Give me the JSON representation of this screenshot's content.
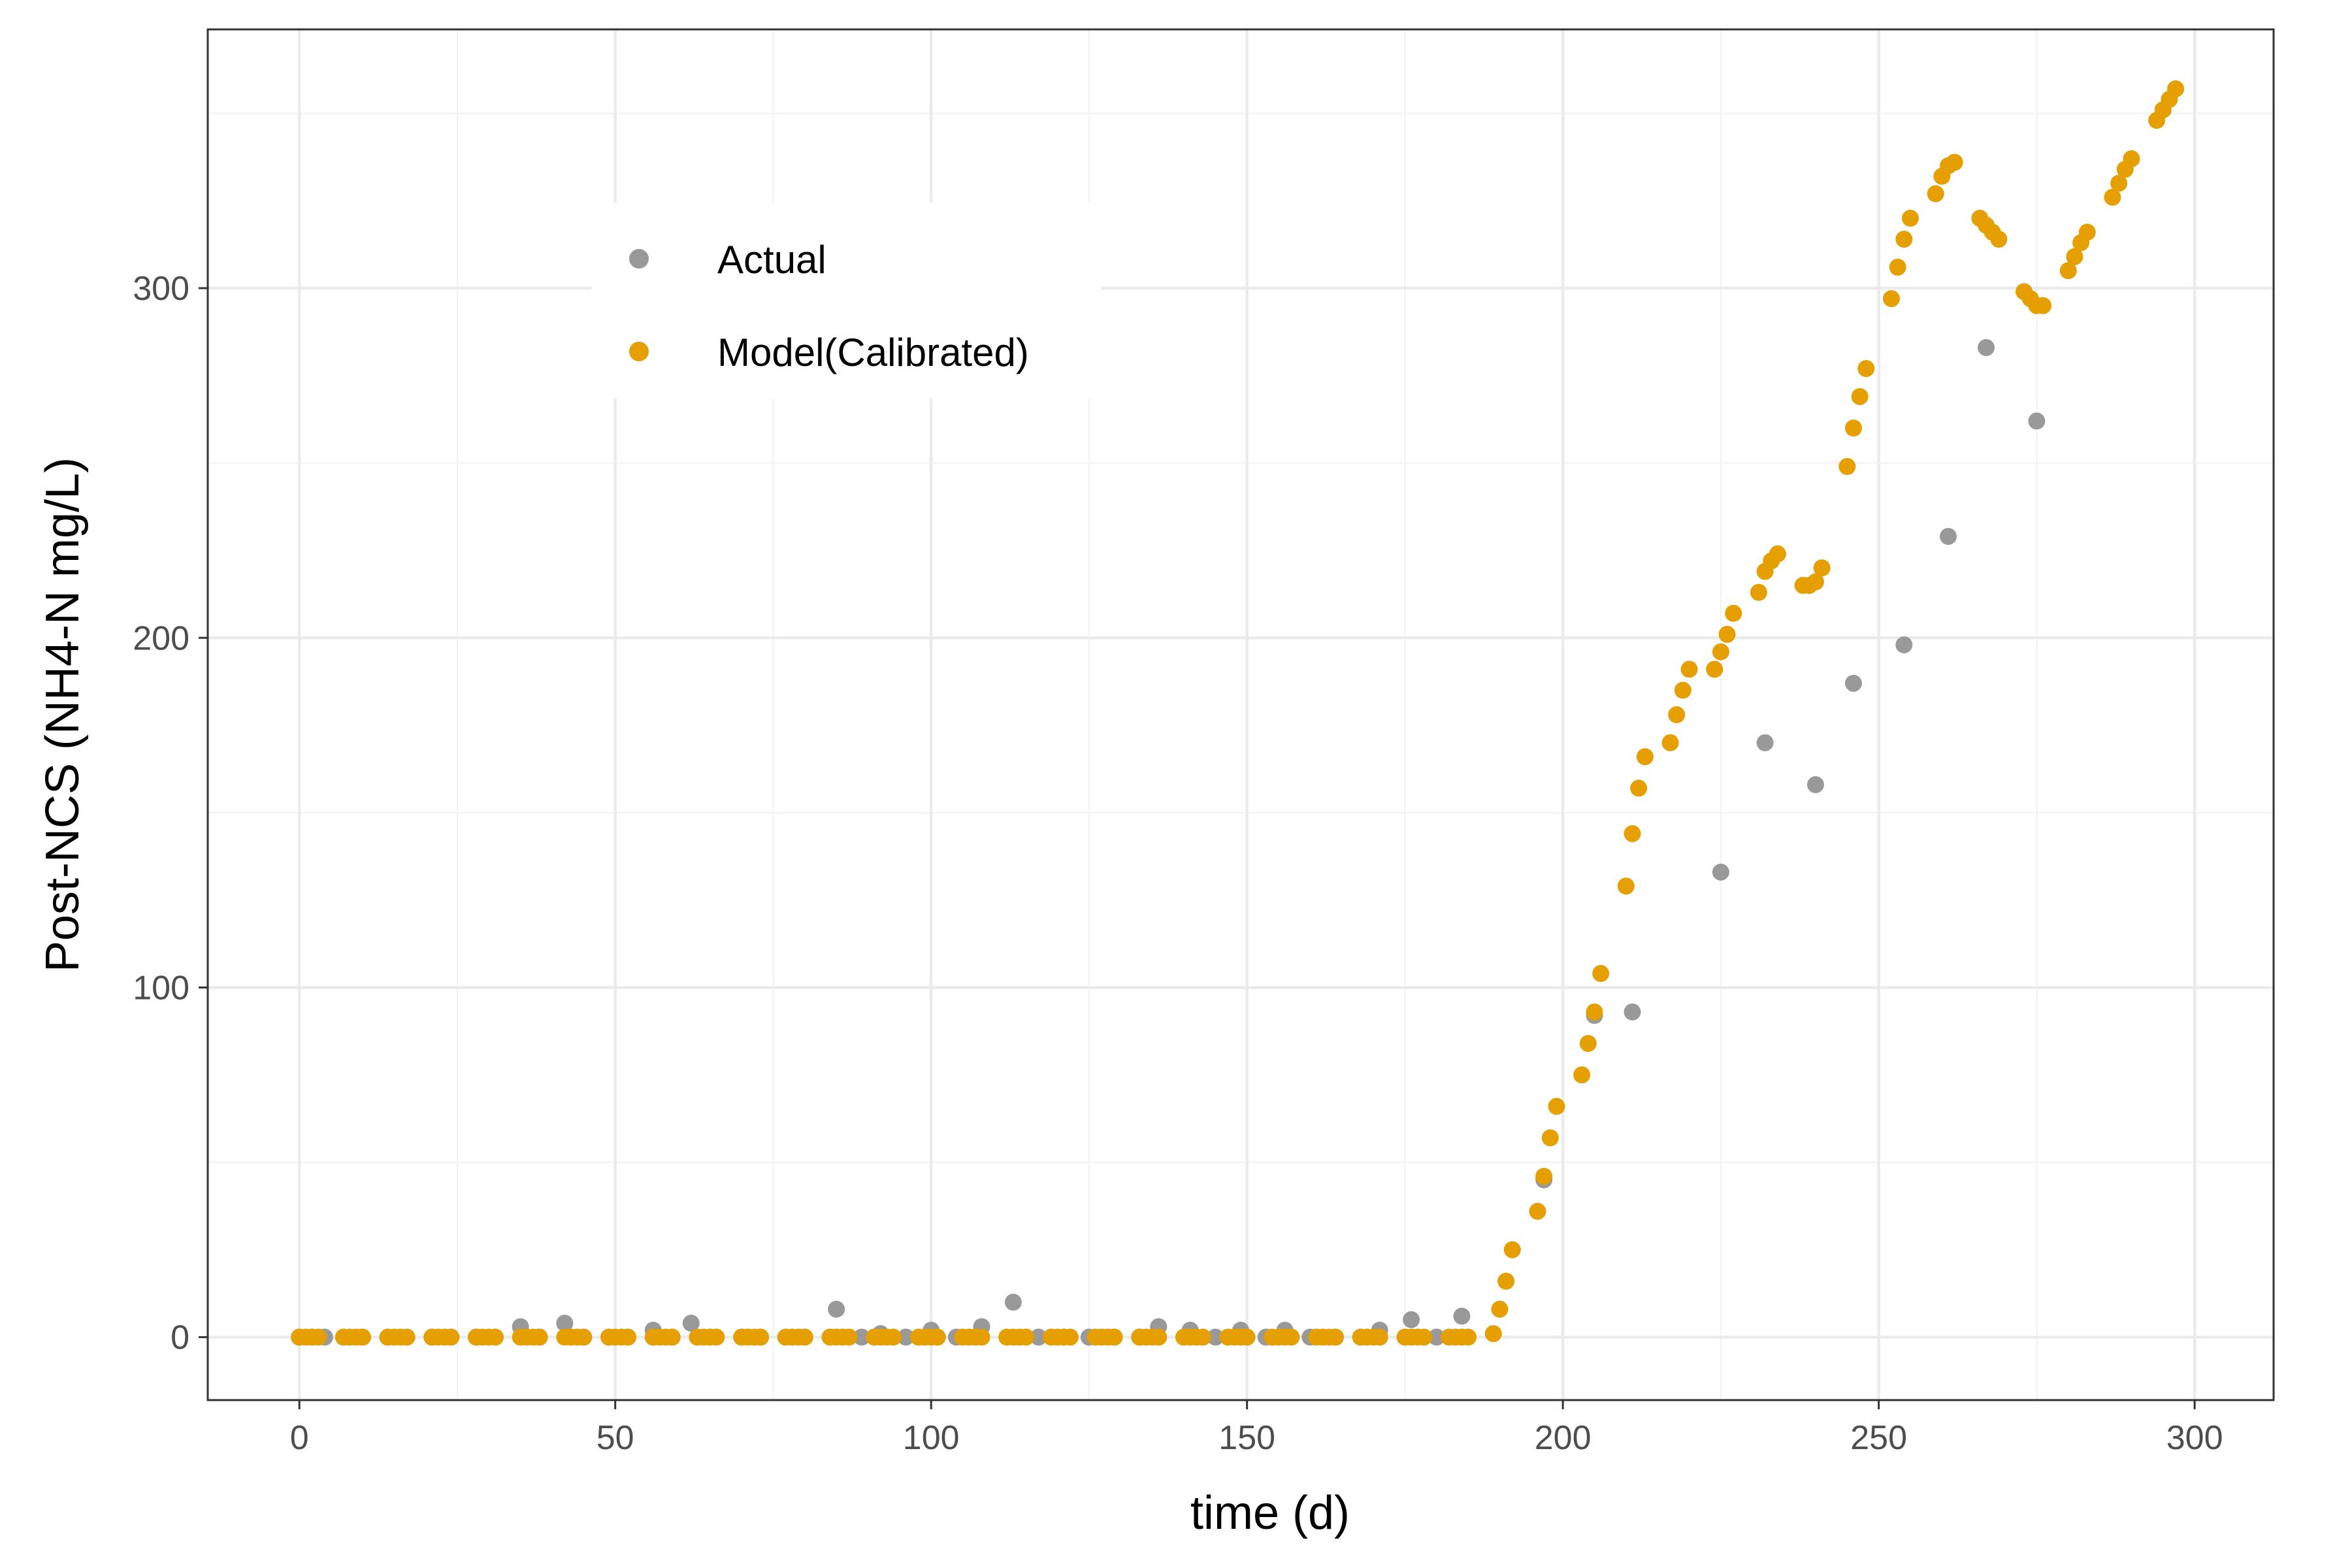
{
  "chart_data": {
    "type": "scatter",
    "title": "",
    "xlabel": "time (d)",
    "ylabel": "Post-NCS (NH4-N mg/L)",
    "xlim": [
      -14.5,
      312.5
    ],
    "ylim": [
      -18,
      374
    ],
    "x_ticks": [
      0,
      50,
      100,
      150,
      200,
      250,
      300
    ],
    "y_ticks": [
      0,
      100,
      200,
      300
    ],
    "x_tick_labels": [
      "0",
      "50",
      "100",
      "150",
      "200",
      "250",
      "300"
    ],
    "y_tick_labels": [
      "0",
      "100",
      "200",
      "300"
    ],
    "x_minor_ticks": [
      25,
      75,
      125,
      175,
      225,
      275
    ],
    "y_minor_ticks": [
      50,
      150,
      250,
      350
    ],
    "grid": true,
    "legend_position": "top-left inside",
    "colors": {
      "Actual": "#999999",
      "Model(Calibrated)": "#E69F00",
      "major_grid": "#ebebeb",
      "minor_grid": "#f2f2f2",
      "panel_border": "#333333"
    },
    "legend": [
      {
        "label": "Actual",
        "color": "#999999"
      },
      {
        "label": "Model(Calibrated)",
        "color": "#E69F00"
      }
    ],
    "series": [
      {
        "name": "Actual",
        "color": "#999999",
        "points": [
          [
            0,
            0
          ],
          [
            2,
            0
          ],
          [
            4,
            0
          ],
          [
            7,
            0
          ],
          [
            10,
            0
          ],
          [
            14,
            0
          ],
          [
            17,
            0
          ],
          [
            21,
            0
          ],
          [
            24,
            0
          ],
          [
            28,
            0
          ],
          [
            31,
            0
          ],
          [
            35,
            3
          ],
          [
            38,
            0
          ],
          [
            42,
            4
          ],
          [
            45,
            0
          ],
          [
            49,
            0
          ],
          [
            52,
            0
          ],
          [
            56,
            2
          ],
          [
            59,
            0
          ],
          [
            62,
            4
          ],
          [
            65,
            0
          ],
          [
            70,
            0
          ],
          [
            73,
            0
          ],
          [
            77,
            0
          ],
          [
            80,
            0
          ],
          [
            85,
            8
          ],
          [
            89,
            0
          ],
          [
            92,
            1
          ],
          [
            96,
            0
          ],
          [
            100,
            2
          ],
          [
            104,
            0
          ],
          [
            108,
            3
          ],
          [
            113,
            10
          ],
          [
            117,
            0
          ],
          [
            121,
            0
          ],
          [
            125,
            0
          ],
          [
            129,
            0
          ],
          [
            133,
            0
          ],
          [
            136,
            3
          ],
          [
            141,
            2
          ],
          [
            145,
            0
          ],
          [
            149,
            2
          ],
          [
            153,
            0
          ],
          [
            156,
            2
          ],
          [
            160,
            0
          ],
          [
            164,
            0
          ],
          [
            168,
            0
          ],
          [
            171,
            2
          ],
          [
            176,
            5
          ],
          [
            180,
            0
          ],
          [
            184,
            6
          ],
          [
            197,
            45
          ],
          [
            205,
            92
          ],
          [
            211,
            93
          ],
          [
            225,
            133
          ],
          [
            232,
            170
          ],
          [
            240,
            158
          ],
          [
            246,
            187
          ],
          [
            254,
            198
          ],
          [
            261,
            229
          ],
          [
            267,
            283
          ],
          [
            275,
            262
          ]
        ]
      },
      {
        "name": "Model(Calibrated)",
        "color": "#E69F00",
        "points": [
          [
            0,
            0
          ],
          [
            1,
            0
          ],
          [
            2,
            0
          ],
          [
            3,
            0
          ],
          [
            7,
            0
          ],
          [
            8,
            0
          ],
          [
            9,
            0
          ],
          [
            10,
            0
          ],
          [
            14,
            0
          ],
          [
            15,
            0
          ],
          [
            16,
            0
          ],
          [
            17,
            0
          ],
          [
            21,
            0
          ],
          [
            22,
            0
          ],
          [
            23,
            0
          ],
          [
            24,
            0
          ],
          [
            28,
            0
          ],
          [
            29,
            0
          ],
          [
            30,
            0
          ],
          [
            31,
            0
          ],
          [
            35,
            0
          ],
          [
            36,
            0
          ],
          [
            37,
            0
          ],
          [
            38,
            0
          ],
          [
            42,
            0
          ],
          [
            43,
            0
          ],
          [
            44,
            0
          ],
          [
            45,
            0
          ],
          [
            49,
            0
          ],
          [
            50,
            0
          ],
          [
            51,
            0
          ],
          [
            52,
            0
          ],
          [
            56,
            0
          ],
          [
            57,
            0
          ],
          [
            58,
            0
          ],
          [
            59,
            0
          ],
          [
            63,
            0
          ],
          [
            64,
            0
          ],
          [
            65,
            0
          ],
          [
            66,
            0
          ],
          [
            70,
            0
          ],
          [
            71,
            0
          ],
          [
            72,
            0
          ],
          [
            73,
            0
          ],
          [
            77,
            0
          ],
          [
            78,
            0
          ],
          [
            79,
            0
          ],
          [
            80,
            0
          ],
          [
            84,
            0
          ],
          [
            85,
            0
          ],
          [
            86,
            0
          ],
          [
            87,
            0
          ],
          [
            91,
            0
          ],
          [
            92,
            0
          ],
          [
            93,
            0
          ],
          [
            94,
            0
          ],
          [
            98,
            0
          ],
          [
            99,
            0
          ],
          [
            100,
            0
          ],
          [
            101,
            0
          ],
          [
            105,
            0
          ],
          [
            106,
            0
          ],
          [
            107,
            0
          ],
          [
            108,
            0
          ],
          [
            112,
            0
          ],
          [
            113,
            0
          ],
          [
            114,
            0
          ],
          [
            115,
            0
          ],
          [
            119,
            0
          ],
          [
            120,
            0
          ],
          [
            121,
            0
          ],
          [
            122,
            0
          ],
          [
            126,
            0
          ],
          [
            127,
            0
          ],
          [
            128,
            0
          ],
          [
            129,
            0
          ],
          [
            133,
            0
          ],
          [
            134,
            0
          ],
          [
            135,
            0
          ],
          [
            136,
            0
          ],
          [
            140,
            0
          ],
          [
            141,
            0
          ],
          [
            142,
            0
          ],
          [
            143,
            0
          ],
          [
            147,
            0
          ],
          [
            148,
            0
          ],
          [
            149,
            0
          ],
          [
            150,
            0
          ],
          [
            154,
            0
          ],
          [
            155,
            0
          ],
          [
            156,
            0
          ],
          [
            157,
            0
          ],
          [
            161,
            0
          ],
          [
            162,
            0
          ],
          [
            163,
            0
          ],
          [
            164,
            0
          ],
          [
            168,
            0
          ],
          [
            169,
            0
          ],
          [
            170,
            0
          ],
          [
            171,
            0
          ],
          [
            175,
            0
          ],
          [
            176,
            0
          ],
          [
            177,
            0
          ],
          [
            178,
            0
          ],
          [
            182,
            0
          ],
          [
            183,
            0
          ],
          [
            184,
            0
          ],
          [
            185,
            0
          ],
          [
            189,
            1
          ],
          [
            190,
            8
          ],
          [
            191,
            16
          ],
          [
            192,
            25
          ],
          [
            196,
            36
          ],
          [
            197,
            46
          ],
          [
            198,
            57
          ],
          [
            199,
            66
          ],
          [
            203,
            75
          ],
          [
            204,
            84
          ],
          [
            205,
            93
          ],
          [
            206,
            104
          ],
          [
            210,
            129
          ],
          [
            211,
            144
          ],
          [
            212,
            157
          ],
          [
            213,
            166
          ],
          [
            217,
            170
          ],
          [
            218,
            178
          ],
          [
            219,
            185
          ],
          [
            220,
            191
          ],
          [
            224,
            191
          ],
          [
            225,
            196
          ],
          [
            226,
            201
          ],
          [
            227,
            207
          ],
          [
            231,
            213
          ],
          [
            232,
            219
          ],
          [
            233,
            222
          ],
          [
            234,
            224
          ],
          [
            238,
            215
          ],
          [
            239,
            215
          ],
          [
            240,
            216
          ],
          [
            241,
            220
          ],
          [
            245,
            249
          ],
          [
            246,
            260
          ],
          [
            247,
            269
          ],
          [
            248,
            277
          ],
          [
            252,
            297
          ],
          [
            253,
            306
          ],
          [
            254,
            314
          ],
          [
            255,
            320
          ],
          [
            259,
            327
          ],
          [
            260,
            332
          ],
          [
            261,
            335
          ],
          [
            262,
            336
          ],
          [
            266,
            320
          ],
          [
            267,
            318
          ],
          [
            268,
            316
          ],
          [
            269,
            314
          ],
          [
            273,
            299
          ],
          [
            274,
            297
          ],
          [
            275,
            295
          ],
          [
            276,
            295
          ],
          [
            280,
            305
          ],
          [
            281,
            309
          ],
          [
            282,
            313
          ],
          [
            283,
            316
          ],
          [
            287,
            326
          ],
          [
            288,
            330
          ],
          [
            289,
            334
          ],
          [
            290,
            337
          ],
          [
            294,
            348
          ],
          [
            295,
            351
          ],
          [
            296,
            354
          ],
          [
            297,
            357
          ]
        ]
      }
    ]
  }
}
